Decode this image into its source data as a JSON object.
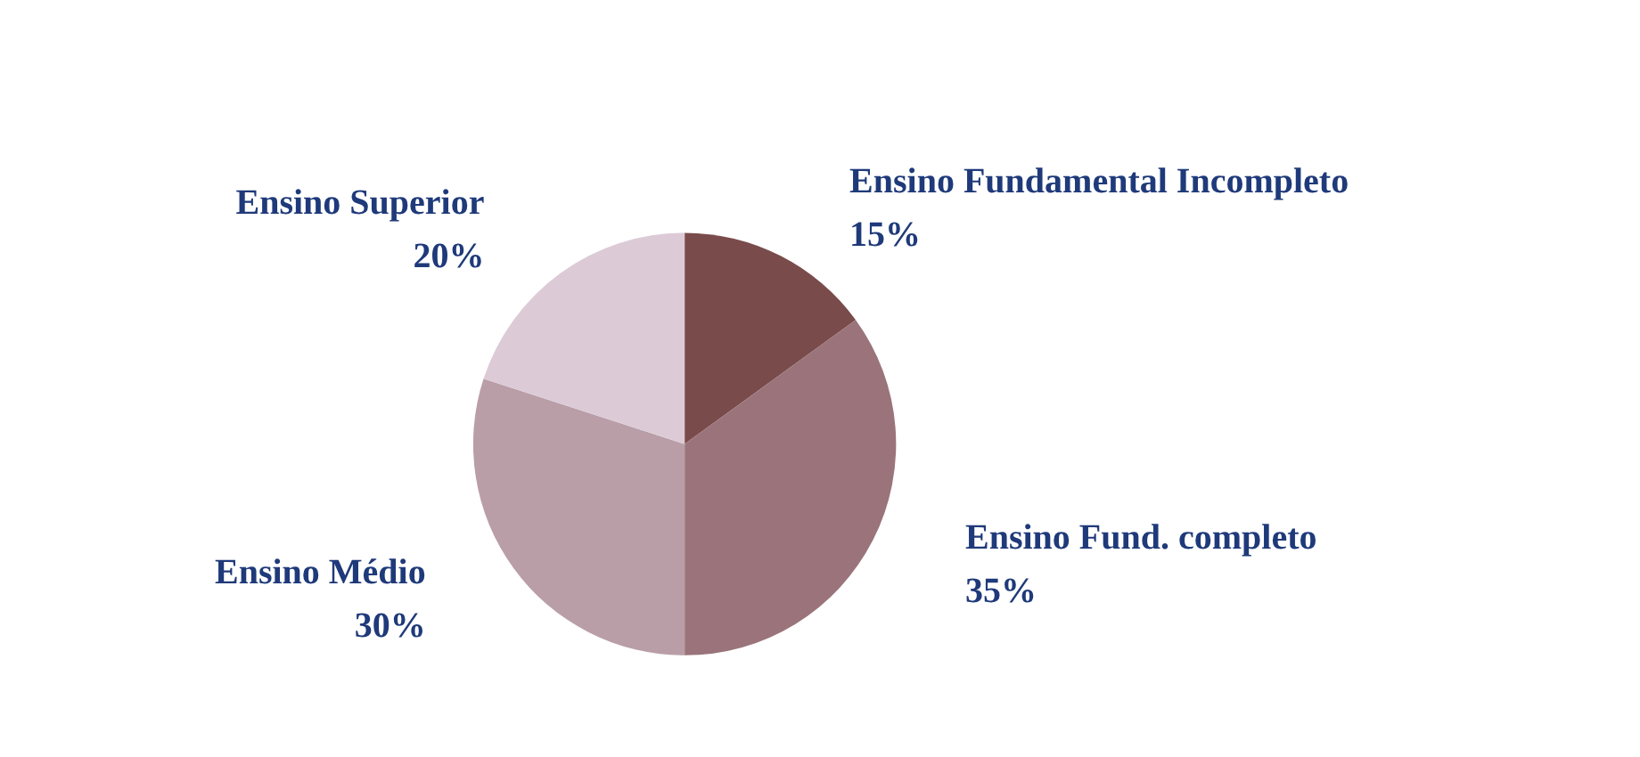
{
  "chart_data": {
    "type": "pie",
    "categories": [
      "Ensino Fundamental Incompleto",
      "Ensino Fund. completo",
      "Ensino Médio",
      "Ensino Superior"
    ],
    "values": [
      15,
      35,
      30,
      20
    ],
    "value_labels": [
      "15%",
      "35%",
      "30%",
      "20%"
    ],
    "colors": [
      "#7a4b4b",
      "#9a747a",
      "#b99ea8",
      "#dccbd6"
    ]
  }
}
